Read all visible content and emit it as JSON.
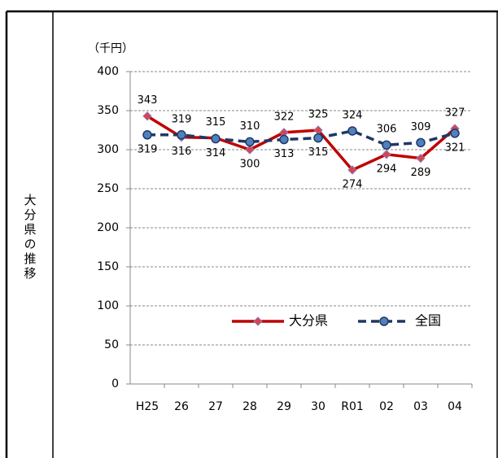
{
  "row_label": "大分県の推移",
  "chart_data": {
    "type": "line",
    "y_label": "（千円）",
    "categories": [
      "H25",
      "26",
      "27",
      "28",
      "29",
      "30",
      "R01",
      "02",
      "03",
      "04"
    ],
    "series": [
      {
        "name": "大分県",
        "color": "#c00000",
        "values": [
          343,
          316,
          315,
          300,
          322,
          325,
          274,
          294,
          289,
          327
        ]
      },
      {
        "name": "全国",
        "color": "#1f3864",
        "values": [
          319,
          319,
          314,
          310,
          313,
          315,
          324,
          306,
          309,
          321
        ]
      }
    ],
    "ylim": [
      0,
      400
    ],
    "yticks": [
      0,
      50,
      100,
      150,
      200,
      250,
      300,
      350,
      400
    ],
    "grid": true
  }
}
